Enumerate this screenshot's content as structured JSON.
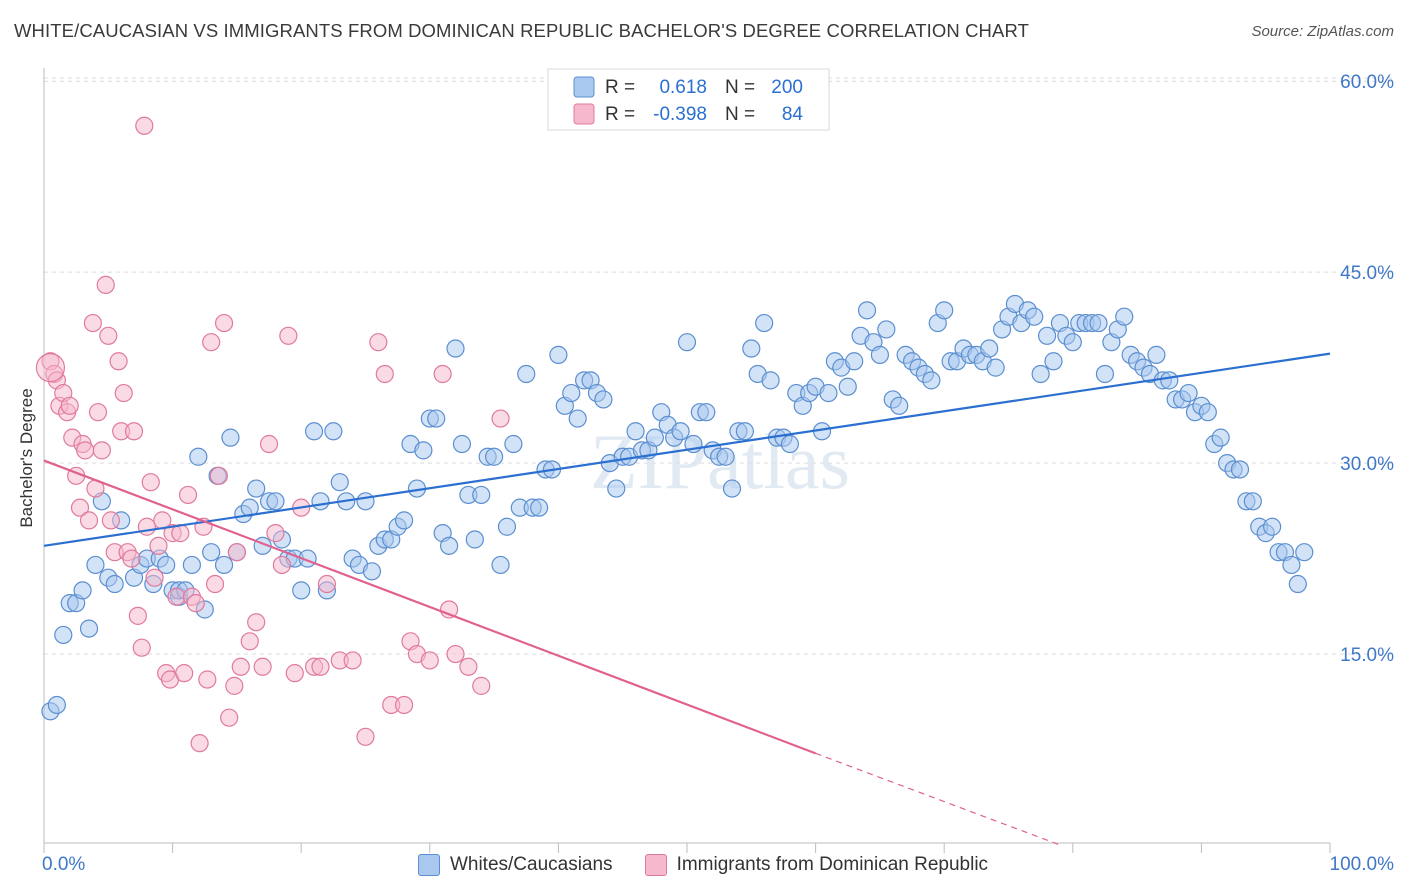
{
  "chart_data": {
    "type": "scatter",
    "title": "WHITE/CAUCASIAN VS IMMIGRANTS FROM DOMINICAN REPUBLIC BACHELOR'S DEGREE CORRELATION CHART",
    "source": "Source: ZipAtlas.com",
    "xlabel": "",
    "ylabel": "Bachelor's Degree",
    "xlim": [
      0,
      100
    ],
    "ylim": [
      0,
      62
    ],
    "x_tick_labels": {
      "min": "0.0%",
      "max": "100.0%"
    },
    "y_ticks": [
      {
        "value": 15,
        "label": "15.0%"
      },
      {
        "value": 30,
        "label": "30.0%"
      },
      {
        "value": 45,
        "label": "45.0%"
      },
      {
        "value": 60,
        "label": "60.0%"
      }
    ],
    "watermark": "ZIPatlas",
    "legend": {
      "r_label": "R =",
      "n_label": "N =",
      "entries": [
        {
          "r": "0.618",
          "n": "200"
        },
        {
          "r": "-0.398",
          "n": "84"
        }
      ]
    },
    "series": [
      {
        "name": "Whites/Caucasians",
        "fill": "#a8c8f0",
        "stroke": "#5b8fd0",
        "line_color": "#2b6fd0",
        "trend": {
          "x0": 0,
          "y0": 23.5,
          "x1": 100,
          "y1": 38.6
        },
        "points": [
          [
            0.5,
            10.5
          ],
          [
            1,
            11
          ],
          [
            1.5,
            16.5
          ],
          [
            2,
            19
          ],
          [
            2.5,
            19
          ],
          [
            3,
            20
          ],
          [
            3.5,
            17
          ],
          [
            4,
            22
          ],
          [
            4.5,
            27
          ],
          [
            5,
            21
          ],
          [
            5.5,
            20.5
          ],
          [
            6,
            25.5
          ],
          [
            7,
            21
          ],
          [
            7.5,
            22
          ],
          [
            8,
            22.5
          ],
          [
            8.5,
            20.5
          ],
          [
            9,
            22.5
          ],
          [
            9.5,
            22
          ],
          [
            10,
            20
          ],
          [
            10.5,
            19.5
          ],
          [
            10.5,
            20
          ],
          [
            11,
            20
          ],
          [
            11.5,
            22
          ],
          [
            12,
            30.5
          ],
          [
            12.5,
            18.5
          ],
          [
            13,
            23
          ],
          [
            13.5,
            29
          ],
          [
            14,
            22
          ],
          [
            14.5,
            32
          ],
          [
            15,
            23
          ],
          [
            15.5,
            26
          ],
          [
            16,
            26.5
          ],
          [
            16.5,
            28
          ],
          [
            17,
            23.5
          ],
          [
            17.5,
            27
          ],
          [
            18,
            27
          ],
          [
            18.5,
            24
          ],
          [
            19,
            22.5
          ],
          [
            19.5,
            22.5
          ],
          [
            20,
            20
          ],
          [
            20.5,
            22.5
          ],
          [
            21,
            32.5
          ],
          [
            21.5,
            27
          ],
          [
            22,
            20
          ],
          [
            22.5,
            32.5
          ],
          [
            23,
            28.5
          ],
          [
            23.5,
            27
          ],
          [
            24,
            22.5
          ],
          [
            24.5,
            22
          ],
          [
            25,
            27
          ],
          [
            25.5,
            21.5
          ],
          [
            26,
            23.5
          ],
          [
            26.5,
            24
          ],
          [
            27,
            24
          ],
          [
            27.5,
            25
          ],
          [
            28,
            25.5
          ],
          [
            28.5,
            31.5
          ],
          [
            29,
            28
          ],
          [
            29.5,
            31
          ],
          [
            30,
            33.5
          ],
          [
            30.5,
            33.5
          ],
          [
            31,
            24.5
          ],
          [
            31.5,
            23.5
          ],
          [
            32,
            39
          ],
          [
            32.5,
            31.5
          ],
          [
            33,
            27.5
          ],
          [
            33.5,
            24
          ],
          [
            34,
            27.5
          ],
          [
            34.5,
            30.5
          ],
          [
            35,
            30.5
          ],
          [
            35.5,
            22
          ],
          [
            36,
            25
          ],
          [
            36.5,
            31.5
          ],
          [
            37,
            26.5
          ],
          [
            37.5,
            37
          ],
          [
            38,
            26.5
          ],
          [
            38.5,
            26.5
          ],
          [
            39,
            29.5
          ],
          [
            39.5,
            29.5
          ],
          [
            40,
            38.5
          ],
          [
            40.5,
            34.5
          ],
          [
            41,
            35.5
          ],
          [
            41.5,
            33.5
          ],
          [
            42,
            36.5
          ],
          [
            42.5,
            36.5
          ],
          [
            43,
            35.5
          ],
          [
            43.5,
            35
          ],
          [
            44,
            30
          ],
          [
            44.5,
            28
          ],
          [
            45,
            30.5
          ],
          [
            45.5,
            30.5
          ],
          [
            46,
            32.5
          ],
          [
            46.5,
            31
          ],
          [
            47,
            31
          ],
          [
            47.5,
            32
          ],
          [
            48,
            34
          ],
          [
            48.5,
            33
          ],
          [
            49,
            32
          ],
          [
            49.5,
            32.5
          ],
          [
            50,
            39.5
          ],
          [
            50.5,
            31.5
          ],
          [
            51,
            34
          ],
          [
            51.5,
            34
          ],
          [
            52,
            31
          ],
          [
            52.5,
            30.5
          ],
          [
            53,
            30.5
          ],
          [
            53.5,
            28
          ],
          [
            54,
            32.5
          ],
          [
            54.5,
            32.5
          ],
          [
            55,
            39
          ],
          [
            55.5,
            37
          ],
          [
            56,
            41
          ],
          [
            56.5,
            36.5
          ],
          [
            57,
            32
          ],
          [
            57.5,
            32
          ],
          [
            58,
            31.5
          ],
          [
            58.5,
            35.5
          ],
          [
            59,
            34.5
          ],
          [
            59.5,
            35.5
          ],
          [
            60,
            36
          ],
          [
            60.5,
            32.5
          ],
          [
            61,
            35.5
          ],
          [
            61.5,
            38
          ],
          [
            62,
            37.5
          ],
          [
            62.5,
            36
          ],
          [
            63,
            38
          ],
          [
            63.5,
            40
          ],
          [
            64,
            42
          ],
          [
            64.5,
            39.5
          ],
          [
            65,
            38.5
          ],
          [
            65.5,
            40.5
          ],
          [
            66,
            35
          ],
          [
            66.5,
            34.5
          ],
          [
            67,
            38.5
          ],
          [
            67.5,
            38
          ],
          [
            68,
            37.5
          ],
          [
            68.5,
            37
          ],
          [
            69,
            36.5
          ],
          [
            69.5,
            41
          ],
          [
            70,
            42
          ],
          [
            70.5,
            38
          ],
          [
            71,
            38
          ],
          [
            71.5,
            39
          ],
          [
            72,
            38.5
          ],
          [
            72.5,
            38.5
          ],
          [
            73,
            38
          ],
          [
            73.5,
            39
          ],
          [
            74,
            37.5
          ],
          [
            74.5,
            40.5
          ],
          [
            75,
            41.5
          ],
          [
            75.5,
            42.5
          ],
          [
            76,
            41
          ],
          [
            76.5,
            42
          ],
          [
            77,
            41.5
          ],
          [
            77.5,
            37
          ],
          [
            78,
            40
          ],
          [
            78.5,
            38
          ],
          [
            79,
            41
          ],
          [
            79.5,
            40
          ],
          [
            80,
            39.5
          ],
          [
            80.5,
            41
          ],
          [
            81,
            41
          ],
          [
            81.5,
            41
          ],
          [
            82,
            41
          ],
          [
            82.5,
            37
          ],
          [
            83,
            39.5
          ],
          [
            83.5,
            40.5
          ],
          [
            84,
            41.5
          ],
          [
            84.5,
            38.5
          ],
          [
            85,
            38
          ],
          [
            85.5,
            37.5
          ],
          [
            86,
            37
          ],
          [
            86.5,
            38.5
          ],
          [
            87,
            36.5
          ],
          [
            87.5,
            36.5
          ],
          [
            88,
            35
          ],
          [
            88.5,
            35
          ],
          [
            89,
            35.5
          ],
          [
            89.5,
            34
          ],
          [
            90,
            34.5
          ],
          [
            90.5,
            34
          ],
          [
            91,
            31.5
          ],
          [
            91.5,
            32
          ],
          [
            92,
            30
          ],
          [
            92.5,
            29.5
          ],
          [
            93,
            29.5
          ],
          [
            93.5,
            27
          ],
          [
            94,
            27
          ],
          [
            94.5,
            25
          ],
          [
            95,
            24.5
          ],
          [
            95.5,
            25
          ],
          [
            96,
            23
          ],
          [
            96.5,
            23
          ],
          [
            97,
            22
          ],
          [
            97.5,
            20.5
          ],
          [
            98,
            23
          ]
        ]
      },
      {
        "name": "Immigrants from Dominican Republic",
        "fill": "#f6b8cc",
        "stroke": "#e07a9c",
        "line_color": "#e0608e",
        "trend": {
          "x0": 0,
          "y0": 30.2,
          "x1": 60,
          "y1": 7.2
        },
        "trend_dashed": {
          "x0": 60,
          "y0": 7.2,
          "x1": 79,
          "y1": 0
        },
        "points": [
          [
            0.5,
            38
          ],
          [
            0.8,
            37
          ],
          [
            1,
            36.5
          ],
          [
            1.2,
            34.5
          ],
          [
            1.5,
            35.5
          ],
          [
            1.8,
            34
          ],
          [
            2,
            34.5
          ],
          [
            2.2,
            32
          ],
          [
            2.5,
            29
          ],
          [
            2.8,
            26.5
          ],
          [
            3,
            31.5
          ],
          [
            3.2,
            31
          ],
          [
            3.5,
            25.5
          ],
          [
            3.8,
            41
          ],
          [
            4,
            28
          ],
          [
            4.2,
            34
          ],
          [
            4.5,
            31
          ],
          [
            4.8,
            44
          ],
          [
            5,
            40
          ],
          [
            5.2,
            25.5
          ],
          [
            5.5,
            23
          ],
          [
            5.8,
            38
          ],
          [
            6,
            32.5
          ],
          [
            6.2,
            35.5
          ],
          [
            6.5,
            23
          ],
          [
            6.8,
            22.5
          ],
          [
            7,
            32.5
          ],
          [
            7.3,
            18
          ],
          [
            7.6,
            15.5
          ],
          [
            8,
            25
          ],
          [
            8.3,
            28.5
          ],
          [
            8.6,
            21
          ],
          [
            8.9,
            23.5
          ],
          [
            9.2,
            25.5
          ],
          [
            9.5,
            13.5
          ],
          [
            9.8,
            13
          ],
          [
            10,
            24.5
          ],
          [
            10.3,
            19.5
          ],
          [
            10.6,
            24.5
          ],
          [
            10.9,
            13.5
          ],
          [
            11.2,
            27.5
          ],
          [
            11.5,
            19.5
          ],
          [
            11.8,
            19
          ],
          [
            12.1,
            8
          ],
          [
            12.4,
            25
          ],
          [
            12.7,
            13
          ],
          [
            13,
            39.5
          ],
          [
            13.3,
            20.5
          ],
          [
            13.6,
            29
          ],
          [
            14,
            41
          ],
          [
            14.4,
            10
          ],
          [
            14.8,
            12.5
          ],
          [
            15,
            23
          ],
          [
            15.3,
            14
          ],
          [
            16,
            16
          ],
          [
            16.5,
            17.5
          ],
          [
            17,
            14
          ],
          [
            17.5,
            31.5
          ],
          [
            18,
            24.5
          ],
          [
            18.5,
            22
          ],
          [
            19,
            40
          ],
          [
            19.5,
            13.5
          ],
          [
            20,
            26.5
          ],
          [
            21,
            14
          ],
          [
            21.5,
            14
          ],
          [
            22,
            20.5
          ],
          [
            23,
            14.5
          ],
          [
            24,
            14.5
          ],
          [
            25,
            8.5
          ],
          [
            26,
            39.5
          ],
          [
            26.5,
            37
          ],
          [
            27,
            11
          ],
          [
            28,
            11
          ],
          [
            28.5,
            16
          ],
          [
            29,
            15
          ],
          [
            30,
            14.5
          ],
          [
            31,
            37
          ],
          [
            31.5,
            18.5
          ],
          [
            32,
            15
          ],
          [
            33,
            14
          ],
          [
            34,
            12.5
          ],
          [
            35.5,
            33.5
          ],
          [
            7.8,
            56.5
          ]
        ]
      }
    ]
  }
}
